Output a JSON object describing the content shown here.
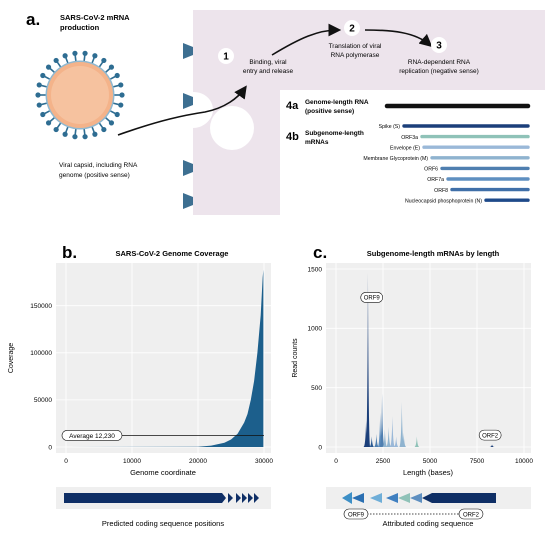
{
  "panel_a": {
    "letter": "a.",
    "title_line1": "SARS-CoV-2 mRNA",
    "title_line2": "production",
    "capsid_line1": "Viral capsid, including RNA",
    "capsid_line2": "genome (positive sense)",
    "steps": [
      {
        "num": "1",
        "line1": "Binding, viral",
        "line2": "entry and release",
        "line3": ""
      },
      {
        "num": "2",
        "line1": "Translation of viral",
        "line2": "RNA polymerase",
        "line3": ""
      },
      {
        "num": "3",
        "line1": "RNA-dependent RNA",
        "line2": "replication (negative sense)",
        "line3": ""
      }
    ],
    "box_4a_tag": "4a",
    "box_4a_line1": "Genome-length RNA",
    "box_4a_line2": "(positive sense)",
    "box_4b_tag": "4b",
    "box_4b_line1": "Subgenome-length",
    "box_4b_line2": "mRNAs",
    "subgenomic": [
      {
        "label": "Spike (S)",
        "color": "#1b3f7a"
      },
      {
        "label": "ORF3a",
        "color": "#8fc2b8"
      },
      {
        "label": "Envelope (E)",
        "color": "#9ab8d8"
      },
      {
        "label": "Membrane Glycoprotein (M)",
        "color": "#8fb3cf"
      },
      {
        "label": "ORF6",
        "color": "#4f7fb0"
      },
      {
        "label": "ORF7a",
        "color": "#5e8fc0"
      },
      {
        "label": "ORF8",
        "color": "#3f6fa8"
      },
      {
        "label": "Nucleocapsid phosphoprotein (N)",
        "color": "#1e4a8a"
      }
    ]
  },
  "panel_b": {
    "letter": "b.",
    "caption": "Predicted coding sequence positions"
  },
  "panel_c": {
    "letter": "c.",
    "caption": "Attributed coding sequence",
    "track_label_left": "ORF9",
    "track_label_right": "ORF2"
  },
  "chart_data": [
    {
      "type": "area",
      "title": "SARS-CoV-2 Genome Coverage",
      "xlabel": "Genome coordinate",
      "ylabel": "Coverage",
      "xlim": [
        0,
        30000
      ],
      "ylim": [
        0,
        190000
      ],
      "xticks": [
        0,
        10000,
        20000,
        30000
      ],
      "yticks": [
        0,
        50000,
        100000,
        150000
      ],
      "x": [
        0,
        20000,
        22000,
        24000,
        25000,
        26000,
        27000,
        27500,
        28000,
        28500,
        29000,
        29500,
        29800,
        29903
      ],
      "y": [
        0,
        300,
        1500,
        4500,
        8000,
        14000,
        26000,
        35000,
        50000,
        70000,
        100000,
        140000,
        180000,
        188000
      ],
      "annotation": "Average 12,230",
      "average": 12230,
      "color": "#1c5f8c"
    },
    {
      "type": "bar",
      "title": "Subgenome-length mRNAs by length",
      "xlabel": "Length (bases)",
      "ylabel": "Read counts",
      "xlim": [
        0,
        10000
      ],
      "ylim": [
        0,
        1500
      ],
      "xticks": [
        0,
        2500,
        5000,
        7500,
        10000
      ],
      "yticks": [
        0,
        500,
        1000,
        1500
      ],
      "peaks": [
        {
          "x": 1600,
          "y": 220,
          "color": "#1b3f7a"
        },
        {
          "x": 1700,
          "y": 1470,
          "color": "#1b3f7a"
        },
        {
          "x": 1900,
          "y": 90,
          "color": "#2a5a93"
        },
        {
          "x": 2150,
          "y": 110,
          "color": "#4f7fb0"
        },
        {
          "x": 2350,
          "y": 290,
          "color": "#5e8fc0"
        },
        {
          "x": 2450,
          "y": 450,
          "color": "#4f7fb0"
        },
        {
          "x": 2600,
          "y": 150,
          "color": "#8fb3cf"
        },
        {
          "x": 2800,
          "y": 170,
          "color": "#8fb3cf"
        },
        {
          "x": 3000,
          "y": 260,
          "color": "#9ab8d8"
        },
        {
          "x": 3200,
          "y": 90,
          "color": "#9ab8d8"
        },
        {
          "x": 3500,
          "y": 380,
          "color": "#8fb3cf"
        },
        {
          "x": 3600,
          "y": 120,
          "color": "#8fb3cf"
        },
        {
          "x": 4300,
          "y": 90,
          "color": "#8fc2b8"
        },
        {
          "x": 8300,
          "y": 20,
          "color": "#1b3f7a"
        }
      ],
      "annotations": [
        {
          "text": "ORF9",
          "x": 1900,
          "y": 1260
        },
        {
          "text": "ORF2",
          "x": 8200,
          "y": 100
        }
      ]
    }
  ]
}
